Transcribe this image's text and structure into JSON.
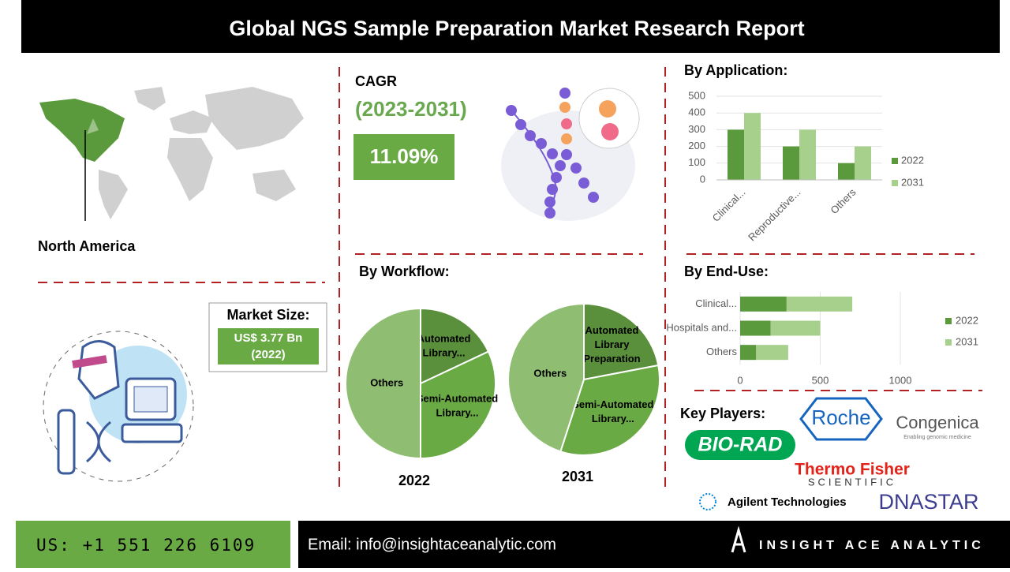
{
  "header": {
    "title": "Global NGS Sample Preparation Market Research Report"
  },
  "region": {
    "label": "North America"
  },
  "cagr": {
    "title": "CAGR",
    "period": "(2023-2031)",
    "value": "11.09%"
  },
  "market_size": {
    "title": "Market Size:",
    "value": "US$ 3.77 Bn",
    "year": "(2022)"
  },
  "by_application": {
    "type": "bar",
    "title": "By Application:",
    "categories": [
      "Clinical...",
      "Reproductive...",
      "Others"
    ],
    "series": [
      {
        "name": "2022",
        "color": "#5b9a3c",
        "values": [
          300,
          200,
          100
        ]
      },
      {
        "name": "2031",
        "color": "#a6d08c",
        "values": [
          400,
          300,
          200
        ]
      }
    ],
    "ylim": [
      0,
      500
    ],
    "yticks": [
      0,
      100,
      200,
      300,
      400,
      500
    ],
    "grid": true,
    "legend": "right"
  },
  "by_workflow": {
    "type": "pie",
    "title": "By Workflow:",
    "colors": [
      "#5a8f3c",
      "#6aaa45",
      "#8fbd72"
    ],
    "charts": [
      {
        "year": "2022",
        "categories": [
          "Automated Library...",
          "Semi-Automated Library...",
          "Others"
        ],
        "values": [
          18,
          32,
          50
        ]
      },
      {
        "year": "2031",
        "categories": [
          "Automated Library Preparation",
          "Semi-Automated Library...",
          "Others"
        ],
        "values": [
          22,
          33,
          45
        ]
      }
    ]
  },
  "by_end_use": {
    "type": "hbar-stacked",
    "title": "By  End-Use:",
    "categories": [
      "Clinical...",
      "Hospitals and...",
      "Others"
    ],
    "series": [
      {
        "name": "2022",
        "color": "#5b9a3c",
        "values": [
          290,
          190,
          100
        ]
      },
      {
        "name": "2031",
        "color": "#a6d08c",
        "values": [
          410,
          310,
          200
        ]
      }
    ],
    "xlim": [
      0,
      1000
    ],
    "xticks": [
      0,
      500,
      1000
    ],
    "grid": true,
    "legend": "right"
  },
  "key_players": {
    "title": "Key Players:",
    "logos": [
      "BIO-RAD",
      "Roche",
      "Congenica",
      "Enabling genomic medicine",
      "Thermo Fisher",
      "SCIENTIFIC",
      "Agilent Technologies",
      "DNASTAR"
    ]
  },
  "footer": {
    "phone": "US: +1 551 226 6109",
    "email": "Email: info@insightaceanalytic.com",
    "brand": "INSIGHT ACE ANALYTIC"
  }
}
